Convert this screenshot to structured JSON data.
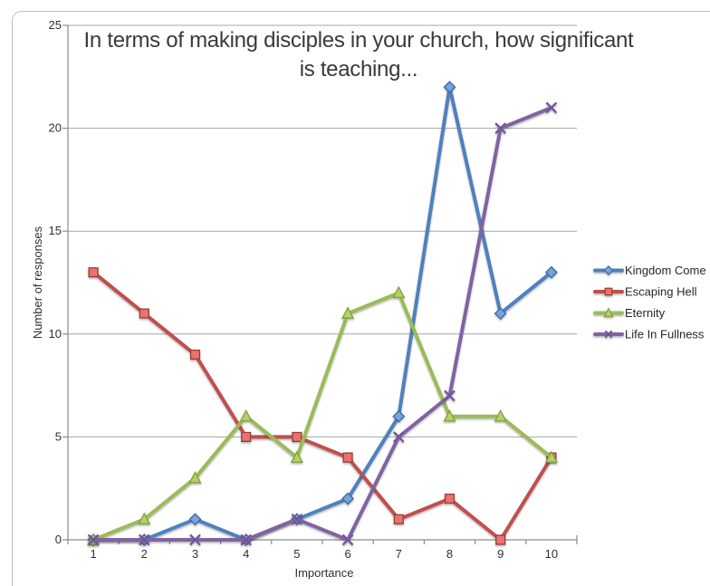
{
  "chart_data": {
    "type": "line",
    "title": "In terms of making disciples in your church, how significant is teaching...",
    "title_lines": [
      "In terms of making disciples in your church, how significant",
      "is teaching..."
    ],
    "xlabel": "Importance",
    "ylabel": "Number of responses",
    "x": [
      1,
      2,
      3,
      4,
      5,
      6,
      7,
      8,
      9,
      10
    ],
    "categories": [
      "1",
      "2",
      "3",
      "4",
      "5",
      "6",
      "7",
      "8",
      "9",
      "10"
    ],
    "yticks": [
      "0",
      "5",
      "10",
      "15",
      "20",
      "25"
    ],
    "ylim": [
      0,
      25
    ],
    "grid": true,
    "legend_position": "right",
    "series": [
      {
        "name": "Kingdom Come",
        "marker": "diamond",
        "line_color": "#4F81BD",
        "marker_fill": "#76A3DE",
        "marker_stroke": "#3A679E",
        "values": [
          0,
          0,
          1,
          0,
          1,
          2,
          6,
          22,
          11,
          13
        ]
      },
      {
        "name": "Escaping Hell",
        "marker": "square",
        "line_color": "#C0504D",
        "marker_fill": "#E8736E",
        "marker_stroke": "#9E3B38",
        "values": [
          13,
          11,
          9,
          5,
          5,
          4,
          1,
          2,
          0,
          4
        ]
      },
      {
        "name": "Eternity",
        "marker": "triangle",
        "line_color": "#9BBB59",
        "marker_fill": "#B2D168",
        "marker_stroke": "#81A03E",
        "values": [
          0,
          1,
          3,
          6,
          4,
          11,
          12,
          6,
          6,
          4
        ]
      },
      {
        "name": "Life In Fullness",
        "marker": "x",
        "line_color": "#8064A2",
        "marker_fill": "none",
        "marker_stroke": "#71579A",
        "values": [
          0,
          0,
          0,
          0,
          1,
          0,
          5,
          7,
          20,
          21
        ]
      }
    ]
  },
  "colors": {
    "background": "#FFFFFF",
    "gridline": "#A6A6A6",
    "axis": "#8C8C8C",
    "text": "#2F2F2F",
    "border": "#BFBFBF"
  }
}
